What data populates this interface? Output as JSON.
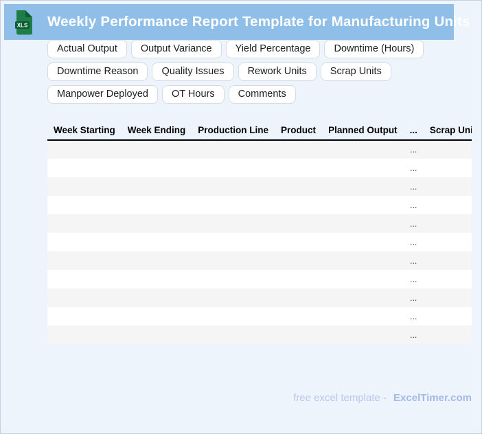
{
  "window": {
    "title": "Weekly Performance Report Template for Manufacturing Units",
    "file_icon_label": "XLS"
  },
  "theme": {
    "header_bg": "#8fbfe8",
    "page_bg": "#eef4fc",
    "page_border": "#c3d0e2",
    "chip_border": "#d5dae3",
    "stripe": "#f5f5f5",
    "icon_green": "#1f7e47",
    "icon_green_dark": "#0c5c33",
    "footer_light": "#b9c6ec",
    "footer_brand": "#a5b8e6"
  },
  "chips": {
    "rows": [
      [
        "Week Starting",
        "Week Ending",
        "Production Line",
        "Product",
        "Planned Output"
      ],
      [
        "Actual Output",
        "Output Variance",
        "Yield Percentage",
        "Downtime (Hours)"
      ],
      [
        "Downtime Reason",
        "Quality Issues",
        "Rework Units",
        "Scrap Units"
      ],
      [
        "Manpower Deployed",
        "OT Hours",
        "Comments"
      ]
    ]
  },
  "table": {
    "columns": [
      "Week Starting",
      "Week Ending",
      "Production Line",
      "Product",
      "Planned Output",
      "...",
      "Scrap Units"
    ],
    "placeholder_col": 5,
    "placeholder": "...",
    "row_count": 11
  },
  "footer": {
    "prefix": "free excel template -",
    "brand": "ExcelTimer.com"
  }
}
